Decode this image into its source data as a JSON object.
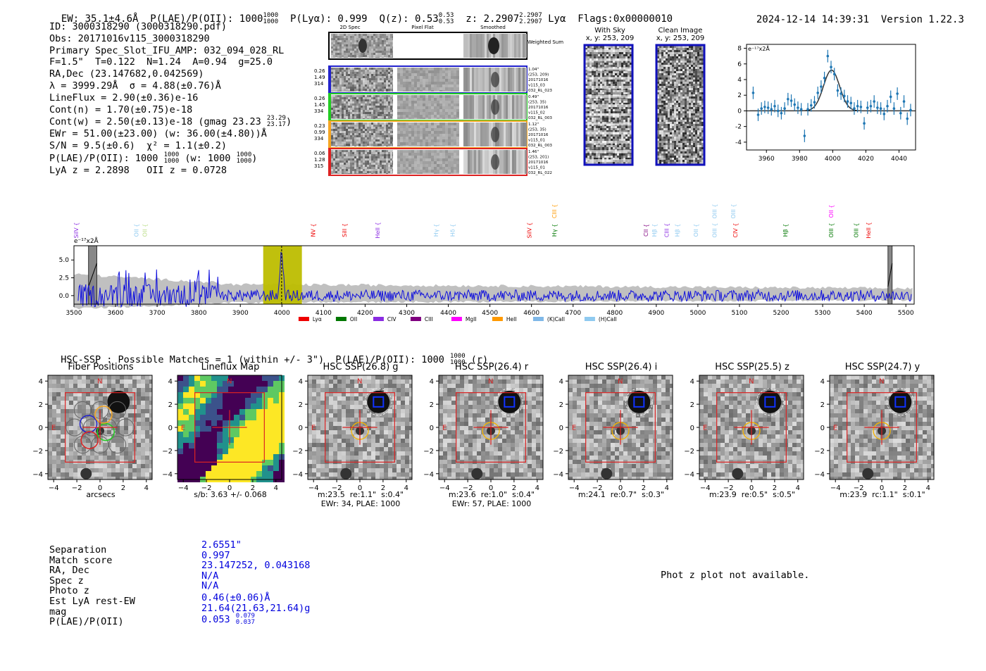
{
  "header": {
    "ew": "EW: 35.1±4.6Å",
    "plae_label": "P(LAE)/P(OII): 1000",
    "plae_hi": "1000",
    "plae_lo": "1000",
    "plya": "P(Lyα): 0.999",
    "qz": "Q(z): 0.53",
    "qz_hi": "0.53",
    "qz_lo": "0.53",
    "z": "z: 2.2907",
    "z_hi": "2.2907",
    "z_lo": "2.2907",
    "z_line": "Lyα",
    "flags": "Flags:0x00000010",
    "timestamp": "2024-12-14 14:39:31",
    "version": "Version 1.22.3"
  },
  "info": {
    "id": "ID: 3000318290 (3000318290.pdf)",
    "obs": "Obs: 20171016v115_3000318290",
    "primary": "Primary Spec_Slot_IFU_AMP: 032_094_028_RL",
    "params": "F=1.5\"  T=0.122  N=1.24  A=0.94  g=25.0",
    "radec": "RA,Dec (23.147682,0.042569)",
    "lambda": "λ = 3999.29Å  σ = 4.88(±0.76)Å",
    "lineflux": "LineFlux = 2.90(±0.36)e-16",
    "contn": "Cont(n) = 1.70(±0.75)e-18",
    "contw": "Cont(w) = 2.50(±0.13)e-18 (gmag 23.23",
    "gmag_hi": "23.29",
    "gmag_lo": "23.17",
    "ewr": "EWr = 51.00(±23.00) (w: 36.00(±4.80))Å",
    "sn": "S/N = 9.5(±0.6)  χ² = 1.1(±0.2)",
    "plae": "P(LAE)/P(OII): 1000",
    "plae_hi": "1000",
    "plae_lo": "1000",
    "plae_w": "(w: 1000",
    "plae_w_hi": "1000",
    "plae_w_lo": "1000",
    "lyaz": "LyA z = 2.2898   OII z = 0.0728"
  },
  "spec2d": {
    "col_titles": [
      "2D Spec",
      "Pixel Flat",
      "Smoothed"
    ],
    "weighted_label": "Weighted Sum",
    "rows": [
      {
        "left": [
          "0.26",
          "1.49",
          "314"
        ],
        "right": [
          "1.04\"",
          "(253, 209)",
          "20171016",
          "v115_03",
          "032_RL_023"
        ],
        "color": "#2222cc"
      },
      {
        "left": [
          "0.26",
          "1.45",
          "334"
        ],
        "right": [
          "0.49\"",
          "(253, 35)",
          "20171016",
          "v115_02",
          "032_RL_003"
        ],
        "color": "#22cc22"
      },
      {
        "left": [
          "0.23",
          "0.99",
          "334"
        ],
        "right": [
          "1.12\"",
          "(253, 35)",
          "20171016",
          "v115_01",
          "032_RL_003"
        ],
        "color": "#f5a623"
      },
      {
        "left": [
          "0.06",
          "1.28",
          "315"
        ],
        "right": [
          "1.46\"",
          "(253, 201)",
          "20171016",
          "v115_01",
          "032_RL_022"
        ],
        "color": "#dd2222"
      }
    ]
  },
  "sky": {
    "with_sky_title": "With Sky",
    "with_sky_coords": "x, y: 253, 209",
    "clean_title": "Clean Image",
    "clean_coords": "x, y: 253, 209"
  },
  "fit_plot": {
    "ylabel": "e⁻¹⁷x2Å",
    "xticks": [
      "3960",
      "3980",
      "4000",
      "4020",
      "4040"
    ],
    "yticks": [
      "8",
      "6",
      "4",
      "2",
      "0",
      "-2",
      "-4"
    ]
  },
  "chart_data": [
    {
      "type": "scatter",
      "title": "Line fit",
      "xlabel": "",
      "ylabel": "e-17 x2Å",
      "xlim": [
        3948,
        4050
      ],
      "ylim": [
        -5,
        8.5
      ],
      "x": [
        3952,
        3955,
        3957,
        3959,
        3961,
        3963,
        3965,
        3967,
        3969,
        3971,
        3973,
        3975,
        3977,
        3979,
        3981,
        3983,
        3985,
        3987,
        3989,
        3991,
        3993,
        3995,
        3997,
        3999,
        4001,
        4003,
        4005,
        4007,
        4009,
        4011,
        4013,
        4015,
        4017,
        4019,
        4021,
        4023,
        4025,
        4027,
        4029,
        4031,
        4033,
        4035,
        4037,
        4039,
        4041,
        4043,
        4045,
        4047
      ],
      "y": [
        2.3,
        -0.5,
        0.3,
        0.5,
        0.4,
        0.2,
        0.6,
        0.0,
        -0.3,
        0.3,
        1.5,
        1.3,
        0.8,
        0.4,
        0.2,
        -3.2,
        0.2,
        0.7,
        1.1,
        2.3,
        3.1,
        4.2,
        7.0,
        5.6,
        4.7,
        2.6,
        2.2,
        1.9,
        1.2,
        1.0,
        0.3,
        0.6,
        0.5,
        -1.6,
        0.4,
        0.6,
        1.2,
        0.4,
        0.3,
        -0.4,
        0.6,
        1.8,
        0.3,
        2.2,
        -0.3,
        1.2,
        -1.0,
        0.1
      ],
      "fit_center": 3999.29,
      "fit_sigma": 4.88,
      "fit_amp": 5.2
    },
    {
      "type": "line",
      "title": "Full spectrum",
      "ylabel": "e-17 x2Å",
      "xlim": [
        3500,
        5520
      ],
      "ylim": [
        -1.2,
        7.0
      ],
      "xticks": [
        "3500",
        "3600",
        "3700",
        "3800",
        "3900",
        "4000",
        "4100",
        "4200",
        "4300",
        "4400",
        "4500",
        "4600",
        "4700",
        "4800",
        "4900",
        "5000",
        "5100",
        "5200",
        "5300",
        "5400",
        "5500"
      ],
      "yticks": [
        "5.0",
        "2.5",
        "0.0"
      ],
      "highlight_range": [
        3955,
        4048
      ],
      "line_marker": 3999.29,
      "masked": [
        [
          3535,
          3555
        ],
        [
          5457,
          5467
        ]
      ],
      "legend": [
        {
          "label": "Lyα",
          "color": "#ee0000"
        },
        {
          "label": "OII",
          "color": "#007700"
        },
        {
          "label": "CIV",
          "color": "#8a2be2"
        },
        {
          "label": "CIII",
          "color": "#7f007f"
        },
        {
          "label": "MgII",
          "color": "#ff00ff"
        },
        {
          "label": "HeII",
          "color": "#ff9900"
        },
        {
          "label": "(K)CaII",
          "color": "#7fb8e8"
        },
        {
          "label": "(H)CaII",
          "color": "#8fcaf0"
        }
      ],
      "line_markers": [
        {
          "label": "SiIV",
          "wave": 3510,
          "color": "#8a2be2",
          "row": 0
        },
        {
          "label": "OII",
          "wave": 3655,
          "color": "#8fcaf0",
          "row": 0
        },
        {
          "label": "OII",
          "wave": 3675,
          "color": "#bbdd88",
          "row": 0
        },
        {
          "label": "NV",
          "wave": 4080,
          "color": "#ee0000",
          "row": 0
        },
        {
          "label": "SiII",
          "wave": 4155,
          "color": "#ee0000",
          "row": 0
        },
        {
          "label": "HeII",
          "wave": 4235,
          "color": "#8a2be2",
          "row": 0
        },
        {
          "label": "Hγ",
          "wave": 4375,
          "color": "#8fcaf0",
          "row": 0
        },
        {
          "label": "Hδ",
          "wave": 4415,
          "color": "#8fcaf0",
          "row": 0
        },
        {
          "label": "SiIV",
          "wave": 4600,
          "color": "#ee0000",
          "row": 0
        },
        {
          "label": "Hγ",
          "wave": 4660,
          "color": "#007700",
          "row": 0
        },
        {
          "label": "CIII",
          "wave": 4660,
          "color": "#ff9900",
          "row": 1
        },
        {
          "label": "CII",
          "wave": 4880,
          "color": "#7f007f",
          "row": 0
        },
        {
          "label": "Hβ",
          "wave": 4900,
          "color": "#8fcaf0",
          "row": 0
        },
        {
          "label": "CIII",
          "wave": 4930,
          "color": "#8a2be2",
          "row": 0
        },
        {
          "label": "Hβ",
          "wave": 4955,
          "color": "#8fcaf0",
          "row": 0
        },
        {
          "label": "OII",
          "wave": 5000,
          "color": "#8fcaf0",
          "row": 0
        },
        {
          "label": "OIII",
          "wave": 5045,
          "color": "#8fcaf0",
          "row": 0
        },
        {
          "label": "OIII",
          "wave": 5045,
          "color": "#8fcaf0",
          "row": 1
        },
        {
          "label": "CIV",
          "wave": 5095,
          "color": "#ee0000",
          "row": 0
        },
        {
          "label": "OIII",
          "wave": 5090,
          "color": "#8fcaf0",
          "row": 1
        },
        {
          "label": "Hβ",
          "wave": 5215,
          "color": "#007700",
          "row": 0
        },
        {
          "label": "OIII",
          "wave": 5325,
          "color": "#007700",
          "row": 0
        },
        {
          "label": "OII",
          "wave": 5325,
          "color": "#ff00ff",
          "row": 1
        },
        {
          "label": "OIII",
          "wave": 5385,
          "color": "#007700",
          "row": 0
        },
        {
          "label": "HeII",
          "wave": 5415,
          "color": "#ee0000",
          "row": 0
        }
      ]
    }
  ],
  "spectrum": {
    "ylabel": "e⁻¹⁷x2Å"
  },
  "hsc": {
    "summary": "HSC-SSP : Possible Matches = 1 (within +/- 3\")  P(LAE)/P(OII): 1000",
    "summary_hi": "1000",
    "summary_lo": "1000",
    "summary_tail": "(r)",
    "panels": [
      {
        "title": "Fiber Positions",
        "caption1": "arcsecs",
        "caption2": ""
      },
      {
        "title": "Lineflux Map",
        "caption1": "s/b: 3.63 +/- 0.068",
        "caption2": ""
      },
      {
        "title": "HSC SSP(26.8) g",
        "caption1": "m:23.5  re:1.1\"  s:0.4\"",
        "caption2": "EWr: 34, PLAE: 1000"
      },
      {
        "title": "HSC SSP(26.4) r",
        "caption1": "m:23.6  re:1.0\"  s:0.4\"",
        "caption2": "EWr: 57, PLAE: 1000"
      },
      {
        "title": "HSC SSP(26.4) i",
        "caption1": "m:24.1  re:0.7\"  s:0.3\"",
        "caption2": ""
      },
      {
        "title": "HSC SSP(25.5) z",
        "caption1": "m:23.9  re:0.5\"  s:0.5\"",
        "caption2": ""
      },
      {
        "title": "HSC SSP(24.7) y",
        "caption1": "m:23.9  rc:1.1\"  s:0.1\"",
        "caption2": ""
      }
    ],
    "ticks": [
      "4",
      "2",
      "0",
      "−2",
      "−4"
    ],
    "xticks": [
      "−4",
      "−2",
      "0",
      "2",
      "4"
    ],
    "north": "N",
    "east": "E"
  },
  "match": {
    "labels": [
      "Separation",
      "Match score",
      "RA, Dec",
      "Spec z",
      "Photo z",
      "Est LyA rest-EW",
      "mag",
      "P(LAE)/P(OII)"
    ],
    "values": [
      "2.6551\"",
      "0.997",
      "23.147252, 0.043168",
      "N/A",
      "N/A",
      "0.46(±0.06)Å",
      "21.64(21.63,21.64)g",
      "0.053"
    ],
    "plae_hi": "0.079",
    "plae_lo": "0.037",
    "photz_msg": "Phot z plot not available."
  }
}
